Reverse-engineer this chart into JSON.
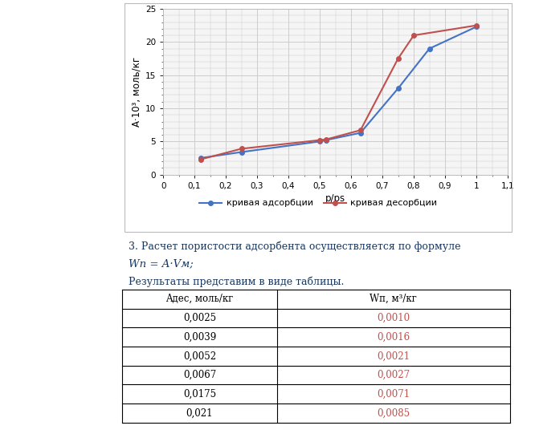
{
  "adsorption_x": [
    0.12,
    0.25,
    0.5,
    0.52,
    0.63,
    0.75,
    0.85,
    1.0
  ],
  "adsorption_y": [
    2.5,
    3.4,
    5.0,
    5.2,
    6.3,
    13.0,
    19.0,
    22.3
  ],
  "desorption_x": [
    0.12,
    0.25,
    0.5,
    0.52,
    0.63,
    0.75,
    0.8,
    1.0
  ],
  "desorption_y": [
    2.3,
    3.9,
    5.2,
    5.3,
    6.7,
    17.5,
    21.0,
    22.5
  ],
  "adsorption_color": "#4472C4",
  "desorption_color": "#C0504D",
  "xlabel": "p/ps",
  "ylabel": "A·10³, моль/кг",
  "xlim": [
    0,
    1.1
  ],
  "ylim": [
    0,
    25
  ],
  "xticks": [
    0,
    0.1,
    0.2,
    0.3,
    0.4,
    0.5,
    0.6,
    0.7,
    0.8,
    0.9,
    1.0,
    1.1
  ],
  "yticks": [
    0,
    5,
    10,
    15,
    20,
    25
  ],
  "legend_adsorption": "кривая адсорбции",
  "legend_desorption": "кривая десорбции",
  "grid_color": "#CCCCCC",
  "chart_bg": "#F5F5F5",
  "outer_bg": "#FFFFFF",
  "text1": "3. Расчет пористости адсорбента осуществляется по формуле",
  "text2": "Wп = A·Vм;",
  "text3": "Результаты представим в виде таблицы.",
  "table_col1": [
    "0,0025",
    "0,0039",
    "0,0052",
    "0,0067",
    "0,0175",
    "0,021"
  ],
  "table_col2": [
    "0,0010",
    "0,0016",
    "0,0021",
    "0,0027",
    "0,0071",
    "0,0085"
  ],
  "table_col2_color": "#C0504D",
  "text_color": "#17375E",
  "page_bg": "#FFFFFF",
  "border_color": "#BBBBBB"
}
